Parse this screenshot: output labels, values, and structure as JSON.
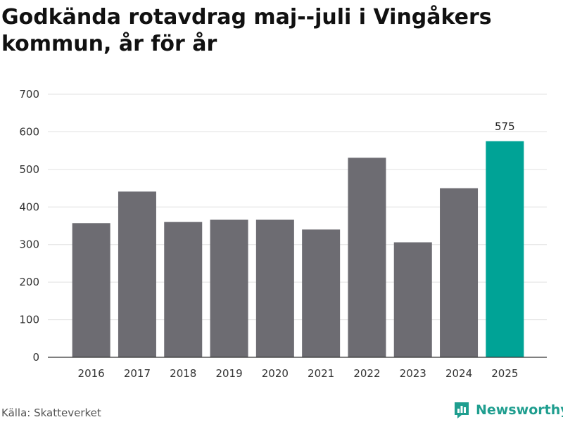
{
  "chart_data": {
    "type": "bar",
    "title": "Godkända rotavdrag maj--juli i Vingåkers kommun, år för år",
    "categories": [
      "2016",
      "2017",
      "2018",
      "2019",
      "2020",
      "2021",
      "2022",
      "2023",
      "2024",
      "2025"
    ],
    "values": [
      357,
      441,
      360,
      366,
      366,
      340,
      531,
      306,
      450,
      575
    ],
    "ylim": [
      0,
      700
    ],
    "yticks": [
      0,
      100,
      200,
      300,
      400,
      500,
      600,
      700
    ],
    "grid": true,
    "highlight_index": 9,
    "data_labels": [
      {
        "index": 9,
        "text": "575"
      }
    ],
    "colors": {
      "bar": "#6d6c72",
      "highlight": "#00a396",
      "grid": "#e0e0e0",
      "axis": "#333333"
    }
  },
  "footer": {
    "source": "Källa: Skatteverket",
    "brand": "Newsworthy"
  },
  "icons": {
    "brand_logo": "newsworthy-logo-icon"
  }
}
